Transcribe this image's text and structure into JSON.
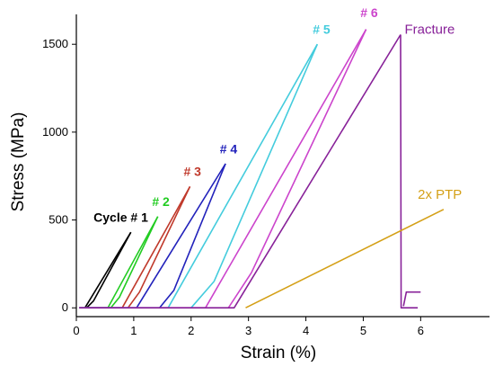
{
  "chart_data": {
    "type": "line",
    "xlabel": "Strain (%)",
    "ylabel": "Stress (MPa)",
    "xlim": [
      0,
      7.2
    ],
    "ylim": [
      -50,
      1670
    ],
    "xticks": [
      0,
      1,
      2,
      3,
      4,
      5,
      6
    ],
    "yticks": [
      0,
      500,
      1000,
      1500
    ],
    "grid": false,
    "legend": "none",
    "series": [
      {
        "name": "Cycle # 1",
        "color": "#000000",
        "loading": [
          [
            0.15,
            0
          ],
          [
            0.95,
            430
          ]
        ],
        "unloading": [
          [
            0.95,
            430
          ],
          [
            0.3,
            40
          ],
          [
            0.18,
            0
          ]
        ]
      },
      {
        "name": "# 2",
        "color": "#22cc22",
        "loading": [
          [
            0.05,
            0
          ],
          [
            0.55,
            0
          ],
          [
            1.42,
            520
          ]
        ],
        "unloading": [
          [
            1.42,
            520
          ],
          [
            0.75,
            60
          ],
          [
            0.6,
            0
          ]
        ]
      },
      {
        "name": "# 3",
        "color": "#c0392b",
        "loading": [
          [
            0.05,
            0
          ],
          [
            0.8,
            0
          ],
          [
            1.98,
            690
          ]
        ],
        "unloading": [
          [
            1.98,
            690
          ],
          [
            1.1,
            90
          ],
          [
            0.9,
            0
          ]
        ]
      },
      {
        "name": "# 4",
        "color": "#2222bb",
        "loading": [
          [
            0.05,
            0
          ],
          [
            1.05,
            0
          ],
          [
            2.6,
            820
          ]
        ],
        "unloading": [
          [
            2.6,
            820
          ],
          [
            1.7,
            100
          ],
          [
            1.45,
            0
          ]
        ]
      },
      {
        "name": "# 5",
        "color": "#44ccdd",
        "loading": [
          [
            0.05,
            0
          ],
          [
            1.6,
            0
          ],
          [
            4.2,
            1500
          ]
        ],
        "unloading": [
          [
            4.2,
            1500
          ],
          [
            2.4,
            150
          ],
          [
            2.0,
            0
          ]
        ]
      },
      {
        "name": "# 6",
        "color": "#cc44cc",
        "loading": [
          [
            0.05,
            0
          ],
          [
            2.25,
            0
          ],
          [
            5.05,
            1585
          ]
        ],
        "unloading": [
          [
            5.05,
            1585
          ],
          [
            3.05,
            200
          ],
          [
            2.65,
            0
          ]
        ]
      },
      {
        "name": "Fracture",
        "color": "#882299",
        "loading": [
          [
            0.05,
            0
          ],
          [
            2.75,
            0
          ],
          [
            5.65,
            1555
          ]
        ],
        "unloading": [
          [
            5.65,
            1555
          ],
          [
            5.66,
            0
          ],
          [
            5.95,
            0
          ]
        ]
      },
      {
        "name": "2x PTP",
        "color": "#d4a017",
        "loading": [
          [
            2.95,
            0
          ],
          [
            6.4,
            560
          ]
        ],
        "unloading": []
      }
    ],
    "extra_segments": [
      {
        "color": "#882299",
        "points": [
          [
            5.7,
            10
          ],
          [
            5.75,
            90
          ],
          [
            6.0,
            90
          ]
        ]
      }
    ],
    "annotations": [
      {
        "text": "Cycle # 1",
        "color": "#000000",
        "x": 0.3,
        "y": 490,
        "style": "bold"
      },
      {
        "text": "# 2",
        "color": "#22cc22",
        "x": 1.32,
        "y": 580,
        "style": "bold"
      },
      {
        "text": "# 3",
        "color": "#c0392b",
        "x": 1.87,
        "y": 750,
        "style": "bold"
      },
      {
        "text": "# 4",
        "color": "#2222bb",
        "x": 2.5,
        "y": 880,
        "style": "bold"
      },
      {
        "text": "# 5",
        "color": "#44ccdd",
        "x": 4.12,
        "y": 1560,
        "style": "bold"
      },
      {
        "text": "# 6",
        "color": "#cc44cc",
        "x": 4.95,
        "y": 1655,
        "style": "bold"
      },
      {
        "text": "Fracture",
        "color": "#882299",
        "x": 5.72,
        "y": 1560,
        "style": "plain"
      },
      {
        "text": "2x PTP",
        "color": "#d4a017",
        "x": 5.95,
        "y": 620,
        "style": "plain"
      }
    ]
  }
}
